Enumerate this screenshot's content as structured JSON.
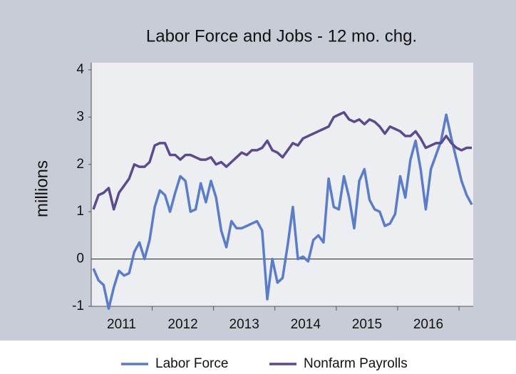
{
  "chart_data": {
    "type": "line",
    "title": "Labor Force and Jobs - 12 mo. chg.",
    "y_label": "millions",
    "categories": [
      null,
      null,
      null,
      null,
      null,
      null,
      "2011",
      null,
      null,
      null,
      null,
      null,
      null,
      null,
      null,
      null,
      null,
      null,
      "2012",
      null,
      null,
      null,
      null,
      null,
      null,
      null,
      null,
      null,
      null,
      null,
      "2013",
      null,
      null,
      null,
      null,
      null,
      null,
      null,
      null,
      null,
      null,
      null,
      "2014",
      null,
      null,
      null,
      null,
      null,
      null,
      null,
      null,
      null,
      null,
      null,
      "2015",
      null,
      null,
      null,
      null,
      null,
      null,
      null,
      null,
      null,
      null,
      null,
      "2016",
      null,
      null,
      null,
      null,
      null,
      null,
      null,
      null
    ],
    "series": [
      {
        "name": "Labor Force",
        "color": "#5b7cc6",
        "values": [
          -0.2,
          -0.45,
          -0.55,
          -1.05,
          -0.6,
          -0.25,
          -0.35,
          -0.3,
          0.15,
          0.35,
          0.0,
          0.4,
          1.1,
          1.45,
          1.35,
          1.0,
          1.4,
          1.75,
          1.65,
          1.0,
          1.05,
          1.6,
          1.2,
          1.65,
          1.3,
          0.6,
          0.25,
          0.8,
          0.65,
          0.65,
          0.7,
          0.75,
          0.8,
          0.6,
          -0.85,
          0.0,
          -0.5,
          -0.4,
          0.3,
          1.1,
          0.0,
          0.05,
          -0.05,
          0.4,
          0.5,
          0.35,
          1.7,
          1.1,
          1.05,
          1.75,
          1.3,
          0.65,
          1.65,
          1.9,
          1.25,
          1.05,
          1.0,
          0.7,
          0.75,
          0.95,
          1.75,
          1.3,
          2.1,
          2.5,
          1.9,
          1.05,
          1.9,
          2.2,
          2.5,
          3.05,
          2.55,
          2.1,
          1.65,
          1.35,
          1.15
        ]
      },
      {
        "name": "Nonfarm Payrolls",
        "color": "#5c4a8c",
        "values": [
          1.05,
          1.35,
          1.4,
          1.5,
          1.05,
          1.4,
          1.55,
          1.7,
          2.0,
          1.95,
          1.95,
          2.05,
          2.4,
          2.45,
          2.45,
          2.2,
          2.2,
          2.1,
          2.2,
          2.2,
          2.15,
          2.1,
          2.1,
          2.15,
          2.0,
          2.05,
          1.95,
          2.05,
          2.15,
          2.25,
          2.2,
          2.3,
          2.3,
          2.35,
          2.5,
          2.3,
          2.25,
          2.15,
          2.3,
          2.45,
          2.4,
          2.55,
          2.6,
          2.65,
          2.7,
          2.75,
          2.8,
          3.0,
          3.05,
          3.1,
          2.95,
          2.9,
          2.95,
          2.85,
          2.95,
          2.9,
          2.8,
          2.65,
          2.8,
          2.75,
          2.7,
          2.6,
          2.6,
          2.7,
          2.55,
          2.35,
          2.4,
          2.45,
          2.45,
          2.6,
          2.45,
          2.35,
          2.3,
          2.35,
          2.35
        ]
      }
    ],
    "ylim": [
      -1,
      4.15
    ],
    "yticks": [
      -1,
      0,
      1,
      2,
      3,
      4
    ]
  }
}
